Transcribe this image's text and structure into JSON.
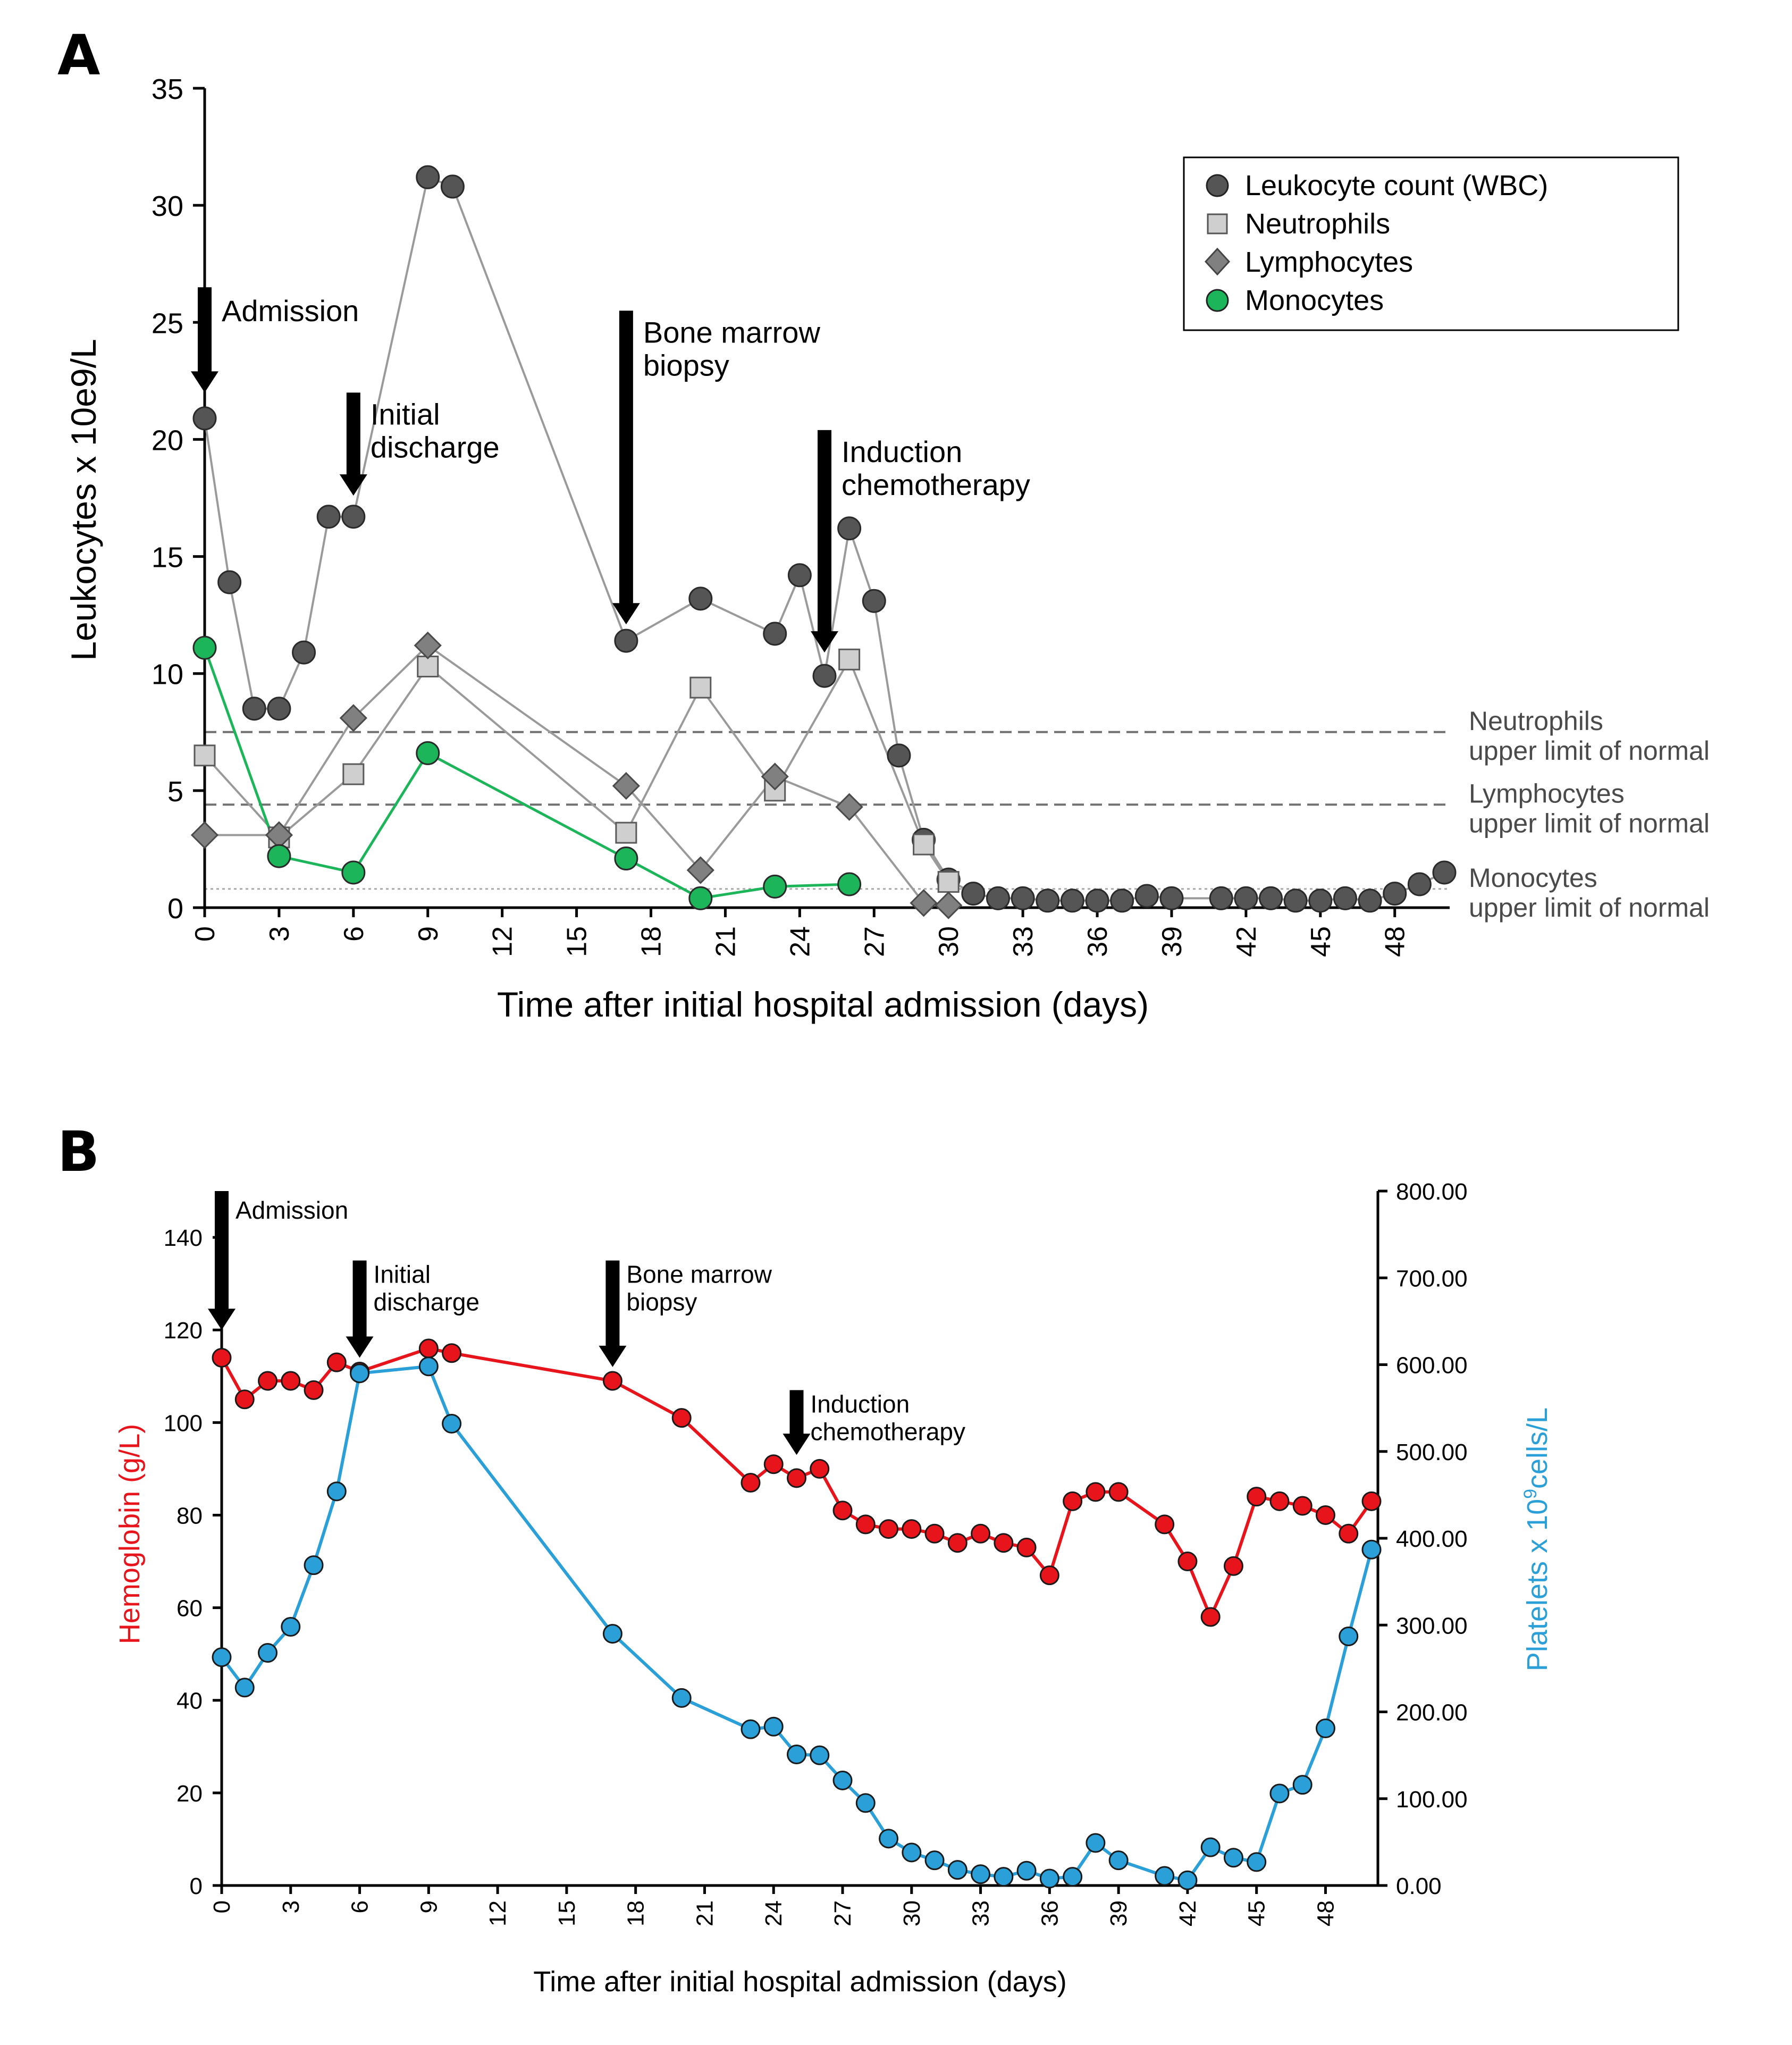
{
  "chart_data": [
    {
      "panel_label": "A",
      "type": "line",
      "xlabel": "Time after initial hospital admission (days)",
      "ylabel": "Leukocytes x 10e9/L",
      "xlim": [
        0,
        50
      ],
      "ylim": [
        0,
        35
      ],
      "x_ticks": [
        0,
        3,
        6,
        9,
        12,
        15,
        18,
        21,
        24,
        27,
        30,
        33,
        36,
        39,
        42,
        45,
        48
      ],
      "x_tick_labels": [
        "0",
        "3",
        "6",
        "9",
        "12",
        "15",
        "18",
        "21",
        "24",
        "27",
        "30",
        "33",
        "36",
        "39",
        "42",
        "45",
        "48"
      ],
      "y_ticks": [
        0,
        5,
        10,
        15,
        20,
        25,
        30,
        35
      ],
      "y_tick_labels": [
        "0",
        "5",
        "10",
        "15",
        "20",
        "25",
        "30",
        "35"
      ],
      "legend_position": "top-right",
      "series": [
        {
          "name": "Leukocyte count (WBC)",
          "marker": "circle",
          "color": "#555555",
          "line_color": "#9a9a9a",
          "points": [
            [
              0,
              20.9
            ],
            [
              1,
              13.9
            ],
            [
              2,
              8.5
            ],
            [
              3,
              8.5
            ],
            [
              4,
              10.9
            ],
            [
              5,
              16.7
            ],
            [
              6,
              16.7
            ],
            [
              9,
              31.2
            ],
            [
              10,
              30.8
            ],
            [
              17,
              11.4
            ],
            [
              20,
              13.2
            ],
            [
              23,
              11.7
            ],
            [
              24,
              14.2
            ],
            [
              25,
              9.9
            ],
            [
              26,
              16.2
            ],
            [
              27,
              13.1
            ],
            [
              28,
              6.5
            ],
            [
              29,
              2.9
            ],
            [
              30,
              1.2
            ],
            [
              31,
              0.6
            ],
            [
              32,
              0.4
            ],
            [
              33,
              0.4
            ],
            [
              34,
              0.3
            ],
            [
              35,
              0.3
            ],
            [
              36,
              0.3
            ],
            [
              37,
              0.3
            ],
            [
              38,
              0.5
            ],
            [
              39,
              0.4
            ],
            [
              41,
              0.4
            ],
            [
              42,
              0.4
            ],
            [
              43,
              0.4
            ],
            [
              44,
              0.3
            ],
            [
              45,
              0.3
            ],
            [
              46,
              0.4
            ],
            [
              47,
              0.3
            ],
            [
              48,
              0.6
            ],
            [
              49,
              1.0
            ],
            [
              50,
              1.5
            ]
          ]
        },
        {
          "name": "Neutrophils",
          "marker": "square",
          "color": "#cfcfcf",
          "line_color": "#9a9a9a",
          "points": [
            [
              0,
              6.5
            ],
            [
              3,
              3.0
            ],
            [
              6,
              5.7
            ],
            [
              9,
              10.3
            ],
            [
              17,
              3.2
            ],
            [
              20,
              9.4
            ],
            [
              23,
              5.0
            ],
            [
              26,
              10.6
            ],
            [
              29,
              2.7
            ],
            [
              30,
              1.1
            ]
          ]
        },
        {
          "name": "Lymphocytes",
          "marker": "diamond",
          "color": "#808080",
          "line_color": "#9a9a9a",
          "points": [
            [
              0,
              3.1
            ],
            [
              3,
              3.1
            ],
            [
              6,
              8.1
            ],
            [
              9,
              11.2
            ],
            [
              17,
              5.2
            ],
            [
              20,
              1.6
            ],
            [
              23,
              5.6
            ],
            [
              26,
              4.3
            ],
            [
              29,
              0.2
            ],
            [
              30,
              0.1
            ]
          ]
        },
        {
          "name": "Monocytes",
          "marker": "circle",
          "color": "#1db55a",
          "line_color": "#1db55a",
          "points": [
            [
              0,
              11.1
            ],
            [
              3,
              2.2
            ],
            [
              6,
              1.5
            ],
            [
              9,
              6.6
            ],
            [
              17,
              2.1
            ],
            [
              20,
              0.4
            ],
            [
              23,
              0.9
            ],
            [
              26,
              1.0
            ]
          ]
        }
      ],
      "reference_lines": [
        {
          "y": 7.5,
          "style": "dashed",
          "label": [
            "Neutrophils",
            "upper limit of normal"
          ]
        },
        {
          "y": 4.4,
          "style": "dashed",
          "label": [
            "Lymphocytes",
            "upper limit of normal"
          ]
        },
        {
          "y": 0.8,
          "style": "dotted",
          "label": [
            "Monocytes",
            "upper limit of normal"
          ]
        }
      ],
      "annotations": [
        {
          "x": 0,
          "y_top": 26.5,
          "y_tip": 22.0,
          "label": [
            "Admission"
          ]
        },
        {
          "x": 6,
          "y_top": 22.0,
          "y_tip": 17.6,
          "label": [
            "Initial",
            "discharge"
          ]
        },
        {
          "x": 17,
          "y_top": 25.5,
          "y_tip": 12.1,
          "label": [
            "Bone marrow",
            "biopsy"
          ]
        },
        {
          "x": 25,
          "y_top": 20.4,
          "y_tip": 10.9,
          "label": [
            "Induction",
            "chemotherapy"
          ]
        }
      ]
    },
    {
      "panel_label": "B",
      "type": "line",
      "xlabel": "Time after initial hospital admission (days)",
      "ylabel_left": "Hemoglobin (g/L)",
      "ylabel_right": "Platelets x 10",
      "ylabel_right_superscript": "9",
      "ylabel_right_suffix": "cells/L",
      "xlim": [
        0,
        50
      ],
      "ylim_left": [
        0,
        150
      ],
      "ylim_right": [
        0,
        800
      ],
      "x_ticks": [
        0,
        3,
        6,
        9,
        12,
        15,
        18,
        21,
        24,
        27,
        30,
        33,
        36,
        39,
        42,
        45,
        48
      ],
      "x_tick_labels": [
        "0",
        "3",
        "6",
        "9",
        "12",
        "15",
        "18",
        "21",
        "24",
        "27",
        "30",
        "33",
        "36",
        "39",
        "42",
        "45",
        "48"
      ],
      "y_left_ticks": [
        0,
        20,
        40,
        60,
        80,
        100,
        120,
        140
      ],
      "y_left_tick_labels": [
        "0",
        "20",
        "40",
        "60",
        "80",
        "100",
        "120",
        "140"
      ],
      "y_right_ticks": [
        0,
        100,
        200,
        300,
        400,
        500,
        600,
        700,
        800
      ],
      "y_right_tick_labels": [
        "0.00",
        "100.00",
        "200.00",
        "300.00",
        "400.00",
        "500.00",
        "600.00",
        "700.00",
        "800.00"
      ],
      "series": [
        {
          "name": "Hemoglobin",
          "axis": "left",
          "color": "#e8141b",
          "points": [
            [
              0,
              114
            ],
            [
              1,
              105
            ],
            [
              2,
              109
            ],
            [
              3,
              109
            ],
            [
              4,
              107
            ],
            [
              5,
              113
            ],
            [
              6,
              111
            ],
            [
              9,
              116
            ],
            [
              10,
              115
            ],
            [
              17,
              109
            ],
            [
              20,
              101
            ],
            [
              23,
              87
            ],
            [
              24,
              91
            ],
            [
              25,
              88
            ],
            [
              26,
              90
            ],
            [
              27,
              81
            ],
            [
              28,
              78
            ],
            [
              29,
              77
            ],
            [
              30,
              77
            ],
            [
              31,
              76
            ],
            [
              32,
              74
            ],
            [
              33,
              76
            ],
            [
              34,
              74
            ],
            [
              35,
              73
            ],
            [
              36,
              67
            ],
            [
              37,
              83
            ],
            [
              38,
              85
            ],
            [
              39,
              85
            ],
            [
              41,
              78
            ],
            [
              42,
              70
            ],
            [
              43,
              58
            ],
            [
              44,
              69
            ],
            [
              45,
              84
            ],
            [
              46,
              83
            ],
            [
              47,
              82
            ],
            [
              48,
              80
            ],
            [
              49,
              76
            ],
            [
              50,
              83
            ]
          ]
        },
        {
          "name": "Platelets",
          "axis": "right",
          "color": "#2a9fd8",
          "points": [
            [
              0,
              263
            ],
            [
              1,
              228
            ],
            [
              2,
              268
            ],
            [
              3,
              298
            ],
            [
              4,
              369
            ],
            [
              5,
              454
            ],
            [
              6,
              590
            ],
            [
              9,
              598
            ],
            [
              10,
              532
            ],
            [
              17,
              290
            ],
            [
              20,
              216
            ],
            [
              23,
              180
            ],
            [
              24,
              183
            ],
            [
              25,
              151
            ],
            [
              26,
              150
            ],
            [
              27,
              121
            ],
            [
              28,
              95
            ],
            [
              29,
              54
            ],
            [
              30,
              38
            ],
            [
              31,
              29
            ],
            [
              32,
              18
            ],
            [
              33,
              13
            ],
            [
              34,
              10
            ],
            [
              35,
              17
            ],
            [
              36,
              8
            ],
            [
              37,
              10
            ],
            [
              38,
              49
            ],
            [
              39,
              29
            ],
            [
              41,
              11
            ],
            [
              42,
              6
            ],
            [
              43,
              44
            ],
            [
              44,
              32
            ],
            [
              45,
              27
            ],
            [
              46,
              106
            ],
            [
              47,
              116
            ],
            [
              48,
              181
            ],
            [
              49,
              287
            ],
            [
              50,
              387
            ]
          ]
        }
      ],
      "annotations": [
        {
          "x": 0,
          "hb_top": 150,
          "hb_tip": 120,
          "label": [
            "Admission"
          ]
        },
        {
          "x": 6,
          "hb_top": 135,
          "hb_tip": 114,
          "label": [
            "Initial",
            "discharge"
          ]
        },
        {
          "x": 17,
          "hb_top": 135,
          "hb_tip": 112,
          "label": [
            "Bone marrow",
            "biopsy"
          ]
        },
        {
          "x": 25,
          "hb_top": 107,
          "hb_tip": 93,
          "label": [
            "Induction",
            "chemotherapy"
          ]
        }
      ]
    }
  ]
}
